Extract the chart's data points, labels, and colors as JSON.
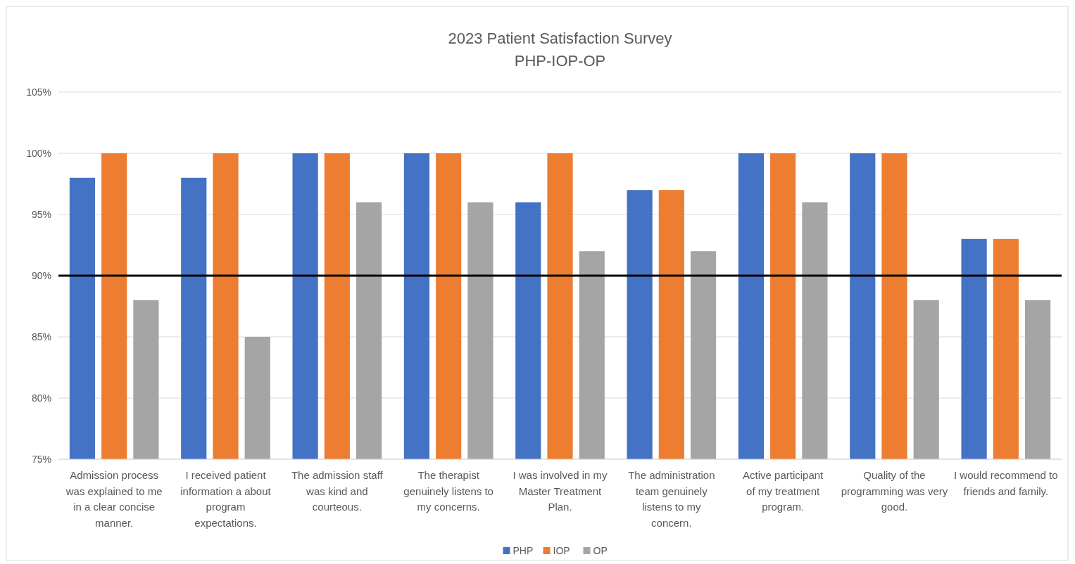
{
  "chart_data": {
    "type": "bar",
    "title": "2023 Patient Satisfaction Survey",
    "subtitle": "PHP-IOP-OP",
    "categories": [
      "Admission process was explained to me in a clear concise manner.",
      "I received patient information a about program expectations.",
      "The admission staff was kind and courteous.",
      "The therapist genuinely listens to my concerns.",
      "I was involved in my Master Treatment Plan.",
      "The administration team genuinely listens to my concern.",
      "Active participant of my treatment program.",
      "Quality of the programming was very good.",
      "I would recommend to friends and family."
    ],
    "series": [
      {
        "name": "PHP",
        "color": "#4472c4",
        "values": [
          98,
          98,
          100,
          100,
          96,
          97,
          100,
          100,
          93
        ]
      },
      {
        "name": "IOP",
        "color": "#ed7d31",
        "values": [
          100,
          100,
          100,
          100,
          100,
          97,
          100,
          100,
          93
        ]
      },
      {
        "name": "OP",
        "color": "#a5a5a5",
        "values": [
          88,
          85,
          96,
          96,
          92,
          92,
          96,
          88,
          88
        ]
      }
    ],
    "ylim": [
      75,
      105
    ],
    "yticks": [
      {
        "value": 75,
        "label": "75%"
      },
      {
        "value": 80,
        "label": "80%"
      },
      {
        "value": 85,
        "label": "85%"
      },
      {
        "value": 90,
        "label": "90%"
      },
      {
        "value": 95,
        "label": "95%"
      },
      {
        "value": 100,
        "label": "100%"
      },
      {
        "value": 105,
        "label": "105%"
      }
    ],
    "grid": "y",
    "legend": "bottom",
    "ref_lines": [
      {
        "axis": "y",
        "value": 90,
        "color": "#000000"
      }
    ]
  }
}
